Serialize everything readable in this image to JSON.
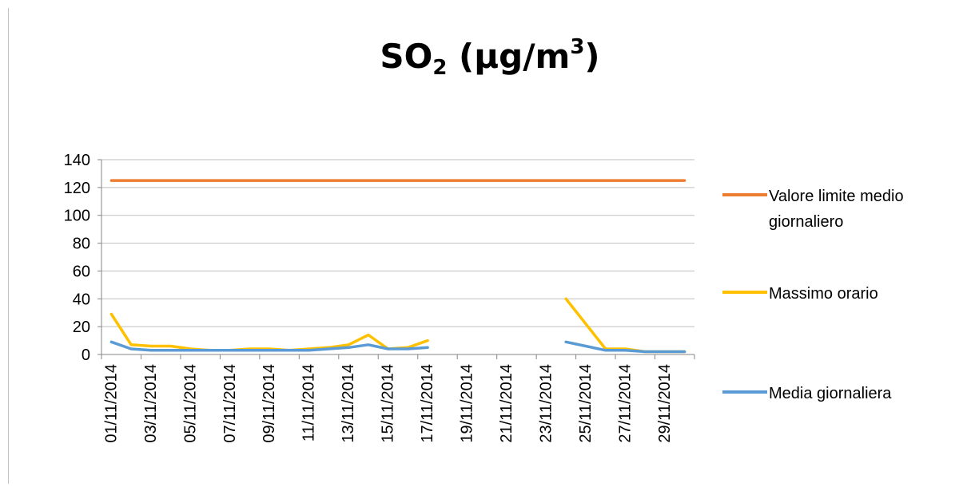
{
  "chart_data": {
    "type": "line",
    "title": {
      "prefix": "SO",
      "subscript": "2",
      "unit_open": "(µg/m",
      "superscript": "3",
      "unit_close": ")"
    },
    "xlabel": "",
    "ylabel": "",
    "ylim": [
      0,
      140
    ],
    "yticks": [
      "0",
      "20",
      "40",
      "60",
      "80",
      "100",
      "120",
      "140"
    ],
    "x": [
      "01/11/2014",
      "02/11/2014",
      "03/11/2014",
      "04/11/2014",
      "05/11/2014",
      "06/11/2014",
      "07/11/2014",
      "08/11/2014",
      "09/11/2014",
      "10/11/2014",
      "11/11/2014",
      "12/11/2014",
      "13/11/2014",
      "14/11/2014",
      "15/11/2014",
      "16/11/2014",
      "17/11/2014",
      "18/11/2014",
      "19/11/2014",
      "20/11/2014",
      "21/11/2014",
      "22/11/2014",
      "23/11/2014",
      "24/11/2014",
      "25/11/2014",
      "26/11/2014",
      "27/11/2014",
      "28/11/2014",
      "29/11/2014",
      "30/11/2014"
    ],
    "xtick_labels": [
      "01/11/2014",
      "03/11/2014",
      "05/11/2014",
      "07/11/2014",
      "09/11/2014",
      "11/11/2014",
      "13/11/2014",
      "15/11/2014",
      "17/11/2014",
      "19/11/2014",
      "21/11/2014",
      "23/11/2014",
      "25/11/2014",
      "27/11/2014",
      "29/11/2014"
    ],
    "grid": true,
    "legend_position": "right",
    "series": [
      {
        "name": "Valore limite medio giornaliero",
        "color": "#ed7d31",
        "values": [
          125,
          125,
          125,
          125,
          125,
          125,
          125,
          125,
          125,
          125,
          125,
          125,
          125,
          125,
          125,
          125,
          125,
          125,
          125,
          125,
          125,
          125,
          125,
          125,
          125,
          125,
          125,
          125,
          125,
          125
        ]
      },
      {
        "name": "Massimo orario",
        "color": "#ffc000",
        "values": [
          29,
          7,
          6,
          6,
          4,
          3,
          3,
          4,
          4,
          3,
          4,
          5,
          7,
          14,
          4,
          5,
          10,
          null,
          null,
          null,
          null,
          null,
          null,
          40,
          22,
          4,
          4,
          2,
          2,
          2
        ]
      },
      {
        "name": "Media giornaliera",
        "color": "#5b9bd5",
        "values": [
          9,
          4,
          3,
          3,
          3,
          3,
          3,
          3,
          3,
          3,
          3,
          4,
          5,
          7,
          4,
          4,
          5,
          null,
          null,
          null,
          null,
          null,
          null,
          9,
          6,
          3,
          3,
          2,
          2,
          2
        ]
      }
    ],
    "legend": [
      {
        "lines": [
          "Valore limite medio",
          "giornaliero"
        ],
        "color": "#ed7d31"
      },
      {
        "lines": [
          "Massimo orario"
        ],
        "color": "#ffc000"
      },
      {
        "lines": [
          "Media giornaliera"
        ],
        "color": "#5b9bd5"
      }
    ]
  }
}
